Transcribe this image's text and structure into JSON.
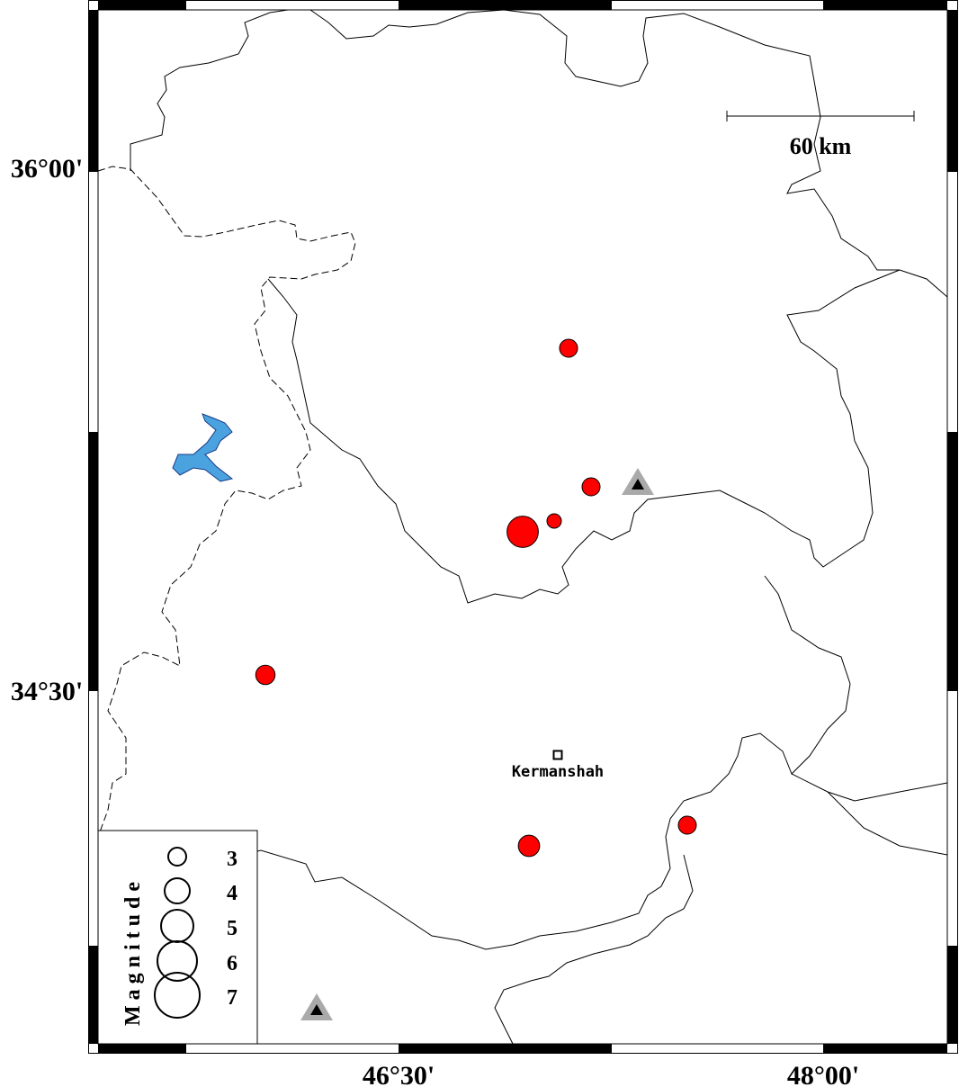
{
  "axes": {
    "lat_labels": [
      "36°00'",
      "34°30'"
    ],
    "lon_labels": [
      "46°30'",
      "48°00'"
    ]
  },
  "scale_bar": {
    "label": "60 km"
  },
  "city": {
    "name": "Kermanshah"
  },
  "legend": {
    "title": "Magnitude",
    "entries": [
      "3",
      "4",
      "5",
      "6",
      "7"
    ]
  },
  "events": [
    {
      "magnitude": 3
    },
    {
      "magnitude": 3
    },
    {
      "magnitude": 3
    },
    {
      "magnitude": 5
    },
    {
      "magnitude": 3.2
    },
    {
      "magnitude": 3.5
    },
    {
      "magnitude": 3
    }
  ],
  "stations": [
    {
      "type": "triangle"
    },
    {
      "type": "triangle"
    }
  ],
  "colors": {
    "event_fill": "#ff0000",
    "lake_fill": "#4aa3df",
    "station_outer": "#aaaaaa",
    "station_inner": "#000000"
  }
}
